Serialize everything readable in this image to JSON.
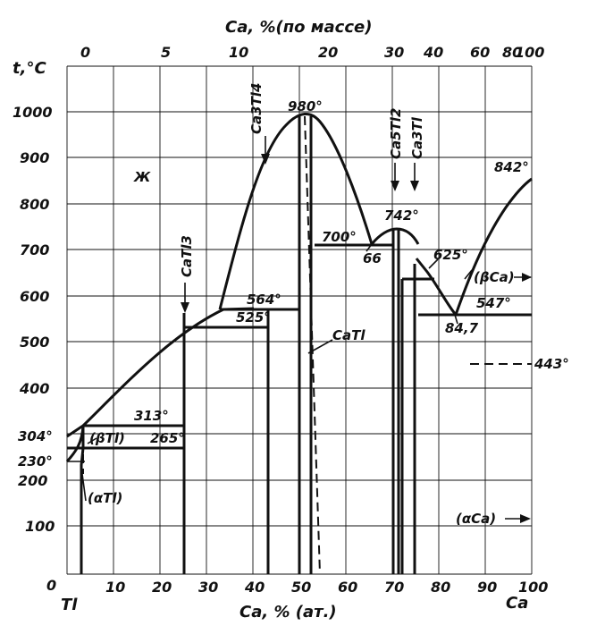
{
  "axes": {
    "y_label": "t,°C",
    "x_bottom_label": "Ca, % (ат.)",
    "x_top_label": "Ca, %(по массе)",
    "left_element": "Tl",
    "right_element": "Ca",
    "y_ticks": [
      "0",
      "100",
      "200",
      "300",
      "400",
      "500",
      "600",
      "700",
      "800",
      "900",
      "1000"
    ],
    "x_bottom_ticks": [
      "10",
      "20",
      "30",
      "40",
      "50",
      "60",
      "70",
      "80",
      "90",
      "100"
    ],
    "x_top_ticks": [
      "0",
      "5",
      "10",
      "20",
      "30",
      "40",
      "60",
      "80",
      "100"
    ]
  },
  "temperatures": {
    "t304": "304°",
    "t230": "230°",
    "t313": "313°",
    "t265": "265°",
    "t525": "525°",
    "t564": "564°",
    "t980": "980°",
    "t700": "700°",
    "t742": "742°",
    "t625": "625°",
    "t547": "547°",
    "t842": "842°",
    "t443": "443°"
  },
  "compositions": {
    "c66": "66",
    "c84_7": "84,7"
  },
  "phases": {
    "liquid": "Ж",
    "beta_tl": "(βTl)",
    "alpha_tl": "(αTl)",
    "beta_ca": "(βCa)",
    "alpha_ca": "(αCa)",
    "catl3": "CaTl3",
    "ca3tl4": "Ca3Tl4",
    "catl": "CaTl",
    "ca5tl2": "Ca5Tl2",
    "ca3tl": "Ca3Tl"
  }
}
